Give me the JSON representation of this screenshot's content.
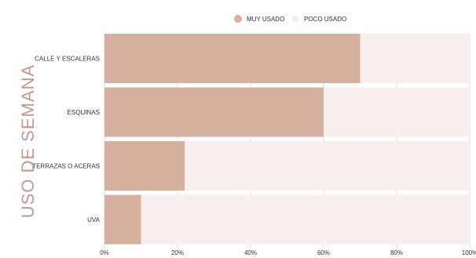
{
  "chart_data": {
    "type": "bar",
    "orientation": "horizontal",
    "stacked": true,
    "ylabel": "USO DE SEMANA",
    "xlabel": "",
    "title": "",
    "categories": [
      "CALLE Y ESCALERAS",
      "ESQUINAS",
      "TERRAZAS O ACERAS",
      "UVA"
    ],
    "series": [
      {
        "name": "MUY USADO",
        "color": "#d5b09e",
        "values": [
          70,
          60,
          22,
          10
        ]
      },
      {
        "name": "POCO USADO",
        "color": "#f6efed",
        "values": [
          30,
          40,
          78,
          90
        ]
      }
    ],
    "xlim": [
      0,
      100
    ],
    "x_ticks": [
      "0%",
      "20%",
      "40%",
      "60%",
      "80%",
      "100%"
    ],
    "legend_position": "top",
    "grid": true
  }
}
